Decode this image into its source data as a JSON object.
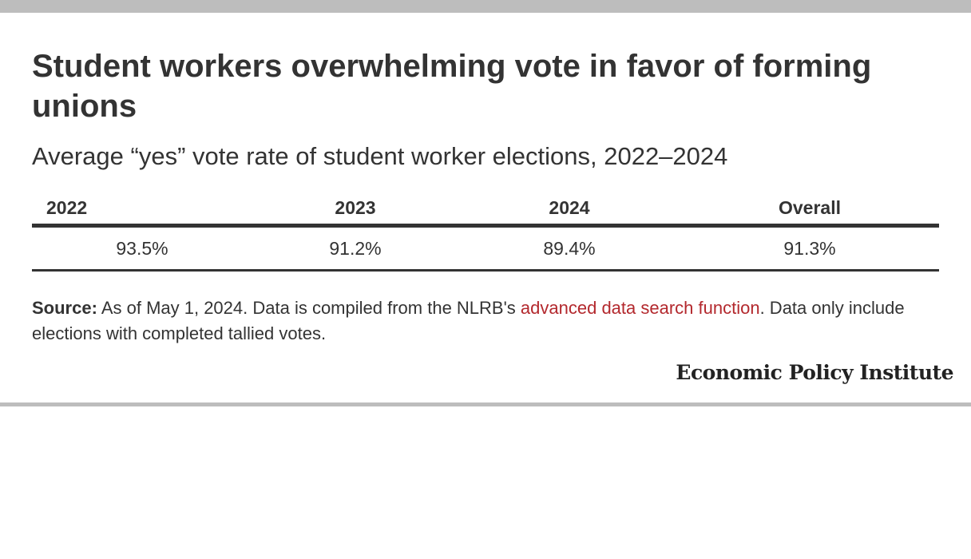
{
  "header": {
    "title": "Student workers overwhelming vote in favor of forming unions",
    "subtitle": "Average “yes” vote rate of student worker elections, 2022–2024"
  },
  "chart_data": {
    "type": "table",
    "title": "Student workers overwhelming vote in favor of forming unions",
    "subtitle": "Average “yes” vote rate of student worker elections, 2022–2024",
    "columns": [
      "2022",
      "2023",
      "2024",
      "Overall"
    ],
    "rows": [
      [
        "93.5%",
        "91.2%",
        "89.4%",
        "91.3%"
      ]
    ]
  },
  "source": {
    "label": "Source:",
    "text_before": " As of May 1, 2024. Data is compiled from the NLRB's ",
    "link_text": "advanced data search function",
    "text_after": ". Data only include elections with completed tallied votes."
  },
  "footer": {
    "logo_text": "Economic Policy Institute"
  },
  "colors": {
    "text": "#333333",
    "link": "#b3282d",
    "rule": "#bdbdbd"
  }
}
